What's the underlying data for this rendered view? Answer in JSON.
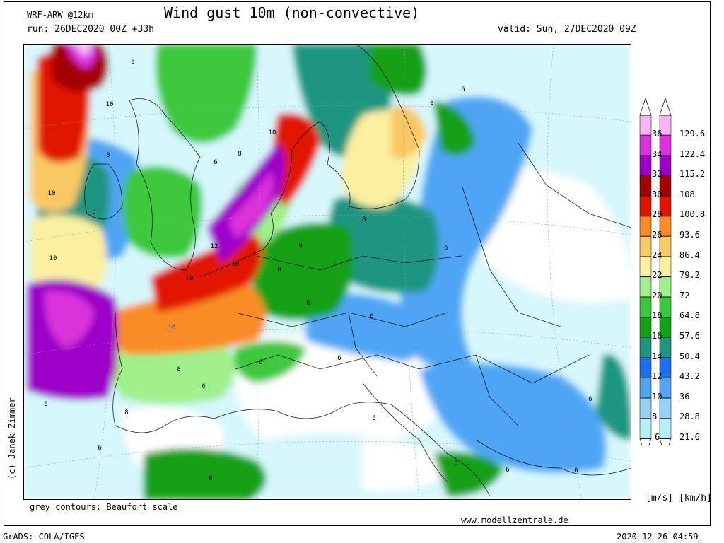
{
  "header": {
    "model": "WRF-ARW @12km",
    "title": "Wind gust 10m (non-convective)",
    "run": "run: 26DEC2020 00Z +33h",
    "valid": "valid: Sun, 27DEC2020 09Z"
  },
  "footer": {
    "contours_note": "grey contours: Beaufort scale",
    "website": "www.modellzentrale.de",
    "software": "GrADS: COLA/IGES",
    "timestamp": "2020-12-26-04:59",
    "copyright": "(c) Janek Zimmer"
  },
  "legend": {
    "units": "[m/s] [km/h]",
    "levels_ms": [
      "6",
      "8",
      "10",
      "12",
      "14",
      "16",
      "18",
      "20",
      "22",
      "24",
      "26",
      "28",
      "30",
      "32",
      "34",
      "36"
    ],
    "levels_kmh": [
      "21.6",
      "28.8",
      "36",
      "43.2",
      "50.4",
      "57.6",
      "64.8",
      "72",
      "79.2",
      "86.4",
      "93.6",
      "100.8",
      "108",
      "115.2",
      "122.4",
      "129.6"
    ],
    "colors": [
      "#b4f0fa",
      "#96d2fa",
      "#50a5f5",
      "#1e6eeb",
      "#1e9680",
      "#14a014",
      "#3cc83c",
      "#a0f08c",
      "#faf0a0",
      "#fac864",
      "#fa8c28",
      "#e11400",
      "#a50000",
      "#9c00c8",
      "#dc32dc",
      "#fab4fa"
    ]
  },
  "map_labels": [
    {
      "text": "6"
    },
    {
      "text": "10"
    },
    {
      "text": "8"
    },
    {
      "text": "10"
    },
    {
      "text": "8"
    },
    {
      "text": "10"
    },
    {
      "text": "10"
    },
    {
      "text": "6"
    },
    {
      "text": "8"
    },
    {
      "text": "12"
    },
    {
      "text": "10"
    },
    {
      "text": "8"
    },
    {
      "text": "10"
    },
    {
      "text": "10"
    },
    {
      "text": "8"
    },
    {
      "text": "6"
    },
    {
      "text": "8"
    },
    {
      "text": "6"
    },
    {
      "text": "8"
    },
    {
      "text": "6"
    },
    {
      "text": "6"
    },
    {
      "text": "8"
    },
    {
      "text": "6"
    },
    {
      "text": "6"
    },
    {
      "text": "6"
    },
    {
      "text": "8"
    },
    {
      "text": "6"
    },
    {
      "text": "6"
    },
    {
      "text": "6"
    },
    {
      "text": "6"
    },
    {
      "text": "6"
    },
    {
      "text": "6"
    },
    {
      "text": "6"
    },
    {
      "text": "6"
    }
  ]
}
